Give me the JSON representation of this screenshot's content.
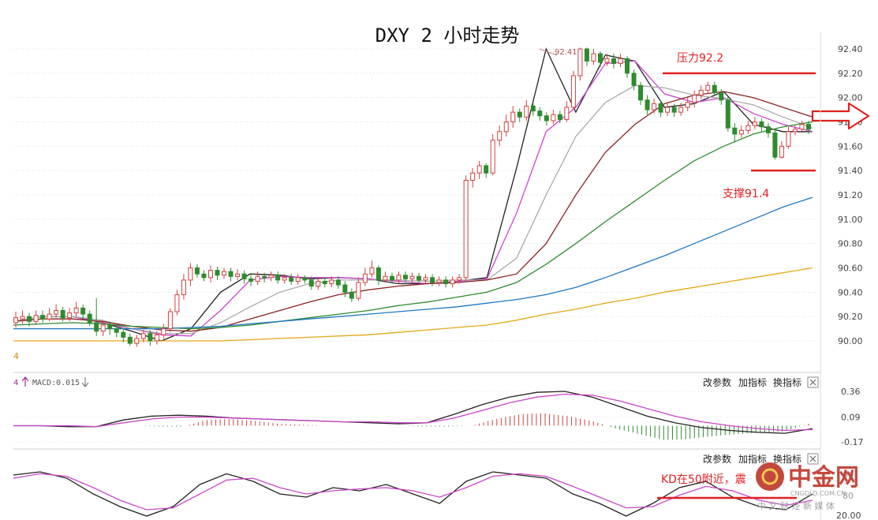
{
  "chart_data": [
    {
      "type": "candlestick",
      "title": "DXY 2 小时走势",
      "ylim": [
        89.9,
        92.5
      ],
      "y_ticks": [
        "92.40",
        "92.20",
        "92.00",
        "91.80",
        "91.60",
        "91.40",
        "91.20",
        "91.00",
        "90.80",
        "90.60",
        "90.40",
        "90.20",
        "90.00"
      ],
      "y_tick_values": [
        92.4,
        92.2,
        92.0,
        91.8,
        91.6,
        91.4,
        91.2,
        91.0,
        90.8,
        90.6,
        90.4,
        90.2,
        90.0
      ],
      "grid": true,
      "candles": [
        [
          90.15,
          90.19,
          90.24,
          90.11
        ],
        [
          90.18,
          90.2,
          90.25,
          90.14
        ],
        [
          90.2,
          90.16,
          90.23,
          90.12
        ],
        [
          90.16,
          90.21,
          90.25,
          90.13
        ],
        [
          90.21,
          90.18,
          90.25,
          90.15
        ],
        [
          90.18,
          90.22,
          90.27,
          90.16
        ],
        [
          90.22,
          90.25,
          90.3,
          90.19
        ],
        [
          90.25,
          90.19,
          90.28,
          90.16
        ],
        [
          90.19,
          90.23,
          90.27,
          90.16
        ],
        [
          90.23,
          90.27,
          90.32,
          90.2
        ],
        [
          90.27,
          90.22,
          90.3,
          90.18
        ],
        [
          90.22,
          90.15,
          90.25,
          90.12
        ],
        [
          90.15,
          90.08,
          90.35,
          90.04
        ],
        [
          90.08,
          90.13,
          90.16,
          90.04
        ],
        [
          90.13,
          90.1,
          90.16,
          90.05
        ],
        [
          90.1,
          90.07,
          90.13,
          90.03
        ],
        [
          90.07,
          90.03,
          90.1,
          89.99
        ],
        [
          90.03,
          89.98,
          90.06,
          89.96
        ],
        [
          89.98,
          90.02,
          90.05,
          89.95
        ],
        [
          90.02,
          90.06,
          90.09,
          89.99
        ],
        [
          90.06,
          90.0,
          90.09,
          89.96
        ],
        [
          90.0,
          90.05,
          90.08,
          89.97
        ],
        [
          90.05,
          90.1,
          90.14,
          90.02
        ],
        [
          90.1,
          90.24,
          90.27,
          90.07
        ],
        [
          90.24,
          90.38,
          90.42,
          90.21
        ],
        [
          90.38,
          90.5,
          90.55,
          90.34
        ],
        [
          90.5,
          90.6,
          90.64,
          90.45
        ],
        [
          90.6,
          90.55,
          90.63,
          90.52
        ],
        [
          90.55,
          90.52,
          90.58,
          90.49
        ],
        [
          90.52,
          90.58,
          90.62,
          90.48
        ],
        [
          90.58,
          90.54,
          90.61,
          90.5
        ],
        [
          90.54,
          90.57,
          90.6,
          90.51
        ],
        [
          90.57,
          90.53,
          90.6,
          90.49
        ],
        [
          90.53,
          90.55,
          90.59,
          90.5
        ],
        [
          90.55,
          90.51,
          90.58,
          90.47
        ],
        [
          90.51,
          90.49,
          90.54,
          90.45
        ],
        [
          90.49,
          90.53,
          90.57,
          90.46
        ],
        [
          90.53,
          90.52,
          90.56,
          90.48
        ],
        [
          90.52,
          90.54,
          90.57,
          90.49
        ],
        [
          90.54,
          90.5,
          90.57,
          90.47
        ],
        [
          90.5,
          90.52,
          90.55,
          90.47
        ],
        [
          90.52,
          90.49,
          90.55,
          90.46
        ],
        [
          90.49,
          90.52,
          90.55,
          90.46
        ],
        [
          90.52,
          90.5,
          90.54,
          90.47
        ],
        [
          90.5,
          90.45,
          90.53,
          90.42
        ],
        [
          90.45,
          90.49,
          90.52,
          90.42
        ],
        [
          90.49,
          90.47,
          90.52,
          90.44
        ],
        [
          90.47,
          90.5,
          90.53,
          90.44
        ],
        [
          90.5,
          90.46,
          90.53,
          90.43
        ],
        [
          90.46,
          90.4,
          90.49,
          90.36
        ],
        [
          90.4,
          90.35,
          90.43,
          90.32
        ],
        [
          90.35,
          90.48,
          90.52,
          90.33
        ],
        [
          90.48,
          90.55,
          90.6,
          90.45
        ],
        [
          90.55,
          90.6,
          90.66,
          90.52
        ],
        [
          90.6,
          90.5,
          90.62,
          90.46
        ],
        [
          90.5,
          90.53,
          90.57,
          90.48
        ],
        [
          90.53,
          90.5,
          90.56,
          90.47
        ],
        [
          90.5,
          90.54,
          90.57,
          90.47
        ],
        [
          90.54,
          90.51,
          90.57,
          90.48
        ],
        [
          90.51,
          90.53,
          90.56,
          90.48
        ],
        [
          90.53,
          90.5,
          90.56,
          90.47
        ],
        [
          90.5,
          90.52,
          90.55,
          90.47
        ],
        [
          90.52,
          90.48,
          90.55,
          90.45
        ],
        [
          90.48,
          90.5,
          90.53,
          90.45
        ],
        [
          90.5,
          90.47,
          90.53,
          90.44
        ],
        [
          90.47,
          90.5,
          90.53,
          90.44
        ],
        [
          90.5,
          90.52,
          90.55,
          90.47
        ],
        [
          90.52,
          91.32,
          91.36,
          90.5
        ],
        [
          91.32,
          91.38,
          91.42,
          91.26
        ],
        [
          91.38,
          91.44,
          91.48,
          91.33
        ],
        [
          91.44,
          91.38,
          91.46,
          91.34
        ],
        [
          91.38,
          91.65,
          91.7,
          91.36
        ],
        [
          91.65,
          91.72,
          91.77,
          91.6
        ],
        [
          91.72,
          91.8,
          91.86,
          91.68
        ],
        [
          91.8,
          91.88,
          91.93,
          91.75
        ],
        [
          91.88,
          91.84,
          91.91,
          91.8
        ],
        [
          91.84,
          91.93,
          91.98,
          91.81
        ],
        [
          91.93,
          91.89,
          91.96,
          91.85
        ],
        [
          91.89,
          91.85,
          91.92,
          91.81
        ],
        [
          91.85,
          91.81,
          91.88,
          91.77
        ],
        [
          91.81,
          91.86,
          91.9,
          91.78
        ],
        [
          91.86,
          91.82,
          91.89,
          91.79
        ],
        [
          91.82,
          91.92,
          91.97,
          91.8
        ],
        [
          91.92,
          92.18,
          92.22,
          91.9
        ],
        [
          92.18,
          92.4,
          92.41,
          92.14
        ],
        [
          92.4,
          92.3,
          92.41,
          92.26
        ],
        [
          92.3,
          92.36,
          92.4,
          92.27
        ],
        [
          92.36,
          92.29,
          92.38,
          92.25
        ],
        [
          92.29,
          92.32,
          92.36,
          92.26
        ],
        [
          92.32,
          92.28,
          92.36,
          92.24
        ],
        [
          92.28,
          92.32,
          92.36,
          92.25
        ],
        [
          92.32,
          92.2,
          92.34,
          92.16
        ],
        [
          92.2,
          92.1,
          92.23,
          92.06
        ],
        [
          92.1,
          91.98,
          92.13,
          91.94
        ],
        [
          91.98,
          91.9,
          92.02,
          91.86
        ],
        [
          91.9,
          91.95,
          91.99,
          91.87
        ],
        [
          91.95,
          91.88,
          91.98,
          91.84
        ],
        [
          91.88,
          91.92,
          91.96,
          91.85
        ],
        [
          91.92,
          91.88,
          91.95,
          91.84
        ],
        [
          91.88,
          91.92,
          91.96,
          91.85
        ],
        [
          91.92,
          91.96,
          92.0,
          91.89
        ],
        [
          91.96,
          92.02,
          92.06,
          91.92
        ],
        [
          92.02,
          92.06,
          92.1,
          91.99
        ],
        [
          92.06,
          92.1,
          92.13,
          92.03
        ],
        [
          92.1,
          92.04,
          92.13,
          92.01
        ],
        [
          92.04,
          91.98,
          92.07,
          91.94
        ],
        [
          91.98,
          91.75,
          92.01,
          91.72
        ],
        [
          91.75,
          91.7,
          91.79,
          91.63
        ],
        [
          91.7,
          91.73,
          91.77,
          91.67
        ],
        [
          91.73,
          91.77,
          91.81,
          91.7
        ],
        [
          91.77,
          91.8,
          91.84,
          91.74
        ],
        [
          91.8,
          91.76,
          91.83,
          91.72
        ],
        [
          91.76,
          91.71,
          91.79,
          91.67
        ],
        [
          91.71,
          91.51,
          91.74,
          91.49
        ],
        [
          91.51,
          91.6,
          91.64,
          91.5
        ],
        [
          91.6,
          91.72,
          91.76,
          91.58
        ],
        [
          91.72,
          91.74,
          91.77,
          91.69
        ],
        [
          91.74,
          91.78,
          91.81,
          91.71
        ],
        [
          91.78,
          91.74,
          91.81,
          91.7
        ]
      ],
      "moving_averages": [
        {
          "color": "#222222",
          "values": [
            90.16,
            90.2,
            90.2,
            90.15,
            90.08,
            90.0,
            90.1,
            90.4,
            90.55,
            90.54,
            90.51,
            90.52,
            90.51,
            90.47,
            90.47,
            90.49,
            90.52,
            91.42,
            92.4,
            91.88,
            92.35,
            92.3,
            91.92,
            91.95,
            92.05,
            91.78,
            91.72,
            91.72
          ]
        },
        {
          "color": "#cc44cc",
          "values": [
            90.16,
            90.2,
            90.2,
            90.15,
            90.1,
            90.05,
            90.04,
            90.25,
            90.5,
            90.53,
            90.52,
            90.52,
            90.51,
            90.49,
            90.47,
            90.49,
            90.51,
            91.05,
            91.72,
            91.92,
            92.28,
            92.3,
            92.03,
            91.96,
            92.0,
            91.87,
            91.78,
            91.72
          ]
        },
        {
          "color": "#aaaaaa",
          "values": [
            90.16,
            90.2,
            90.2,
            90.17,
            90.1,
            90.06,
            90.06,
            90.15,
            90.28,
            90.4,
            90.47,
            90.5,
            90.5,
            90.5,
            90.49,
            90.5,
            90.5,
            90.68,
            91.2,
            91.68,
            91.96,
            92.1,
            92.08,
            92.02,
            91.99,
            91.94,
            91.84,
            91.75
          ]
        },
        {
          "color": "#8b2222",
          "values": [
            90.16,
            90.18,
            90.18,
            90.16,
            90.12,
            90.09,
            90.08,
            90.11,
            90.18,
            90.25,
            90.32,
            90.38,
            90.42,
            90.45,
            90.47,
            90.48,
            90.5,
            90.55,
            90.8,
            91.2,
            91.55,
            91.78,
            91.95,
            92.02,
            92.05,
            92.0,
            91.92,
            91.84
          ]
        },
        {
          "color": "#2e8b2e",
          "values": [
            90.13,
            90.14,
            90.15,
            90.14,
            90.12,
            90.11,
            90.1,
            90.11,
            90.13,
            90.16,
            90.19,
            90.22,
            90.25,
            90.29,
            90.32,
            90.36,
            90.4,
            90.48,
            90.63,
            90.8,
            90.98,
            91.15,
            91.32,
            91.48,
            91.6,
            91.7,
            91.76,
            91.8
          ]
        },
        {
          "color": "#1f77c4",
          "values": [
            90.1,
            90.1,
            90.1,
            90.1,
            90.1,
            90.1,
            90.11,
            90.12,
            90.14,
            90.16,
            90.18,
            90.2,
            90.22,
            90.24,
            90.26,
            90.28,
            90.31,
            90.34,
            90.38,
            90.44,
            90.52,
            90.61,
            90.7,
            90.8,
            90.9,
            91.0,
            91.1,
            91.18
          ]
        },
        {
          "color": "#e6a817",
          "values": [
            90.0,
            90.0,
            90.0,
            90.0,
            90.0,
            90.0,
            90.0,
            90.0,
            90.01,
            90.02,
            90.03,
            90.04,
            90.05,
            90.07,
            90.09,
            90.11,
            90.13,
            90.17,
            90.22,
            90.26,
            90.31,
            90.35,
            90.4,
            90.44,
            90.48,
            90.52,
            90.56,
            90.6
          ]
        }
      ],
      "annotations": {
        "high_label": "92.41",
        "resistance": {
          "label": "压力92.2",
          "value": 92.2,
          "color": "#e02020"
        },
        "support": {
          "label": "支撑91.4",
          "value": 91.4,
          "color": "#e02020"
        }
      },
      "left_stub": "4"
    },
    {
      "type": "macd",
      "ylim": [
        -0.24,
        0.42
      ],
      "y_ticks": [
        "0.36",
        "0.09",
        "-0.17"
      ],
      "y_tick_values": [
        0.36,
        0.09,
        -0.17
      ],
      "header_label": "MACD:0.015",
      "buttons": [
        "改参数",
        "加指标",
        "换指标"
      ],
      "dif": [
        0.0,
        0.0,
        -0.01,
        -0.01,
        0.06,
        0.1,
        0.11,
        0.1,
        0.08,
        0.07,
        0.06,
        0.05,
        0.04,
        0.03,
        0.02,
        0.03,
        0.12,
        0.22,
        0.3,
        0.35,
        0.36,
        0.3,
        0.2,
        0.1,
        0.03,
        -0.02,
        -0.05,
        -0.07,
        -0.08,
        -0.03
      ],
      "dea": [
        0.0,
        0.0,
        0.0,
        -0.01,
        0.03,
        0.07,
        0.09,
        0.09,
        0.08,
        0.07,
        0.06,
        0.05,
        0.04,
        0.04,
        0.03,
        0.03,
        0.08,
        0.16,
        0.24,
        0.3,
        0.33,
        0.32,
        0.26,
        0.18,
        0.1,
        0.04,
        0.0,
        -0.03,
        -0.05,
        -0.04
      ],
      "hist": [
        0.0,
        0.0,
        -0.01,
        -0.01,
        0.06,
        0.07,
        0.05,
        0.02,
        0.01,
        0.0,
        0.0,
        0.0,
        0.0,
        -0.01,
        -0.01,
        0.0,
        0.07,
        0.12,
        0.13,
        0.1,
        0.05,
        -0.03,
        -0.09,
        -0.15,
        -0.14,
        -0.11,
        -0.09,
        -0.07,
        -0.06,
        0.02
      ]
    },
    {
      "type": "kd",
      "ylim": [
        20,
        100
      ],
      "buttons": [
        "改参数",
        "加指标",
        "换指标"
      ],
      "k": [
        90,
        95,
        85,
        60,
        40,
        25,
        40,
        75,
        92,
        80,
        60,
        55,
        70,
        65,
        75,
        60,
        45,
        80,
        95,
        90,
        85,
        60,
        45,
        25,
        45,
        70,
        80,
        55,
        40,
        35,
        60
      ],
      "d": [
        85,
        92,
        88,
        70,
        50,
        35,
        38,
        60,
        82,
        85,
        70,
        60,
        65,
        68,
        70,
        65,
        55,
        70,
        88,
        92,
        88,
        72,
        55,
        38,
        40,
        58,
        72,
        65,
        50,
        42,
        50
      ],
      "annotation": {
        "label": "KD在50附近，震",
        "color": "#e02020"
      },
      "partial_tick_labels": [
        "90",
        "80",
        "20.00"
      ]
    }
  ],
  "watermark": {
    "brand": "中金网",
    "site": "CNGOLD.COM.CN",
    "subtitle": "中 文 财 经 新 媒 体",
    "color": "#c0392b"
  }
}
